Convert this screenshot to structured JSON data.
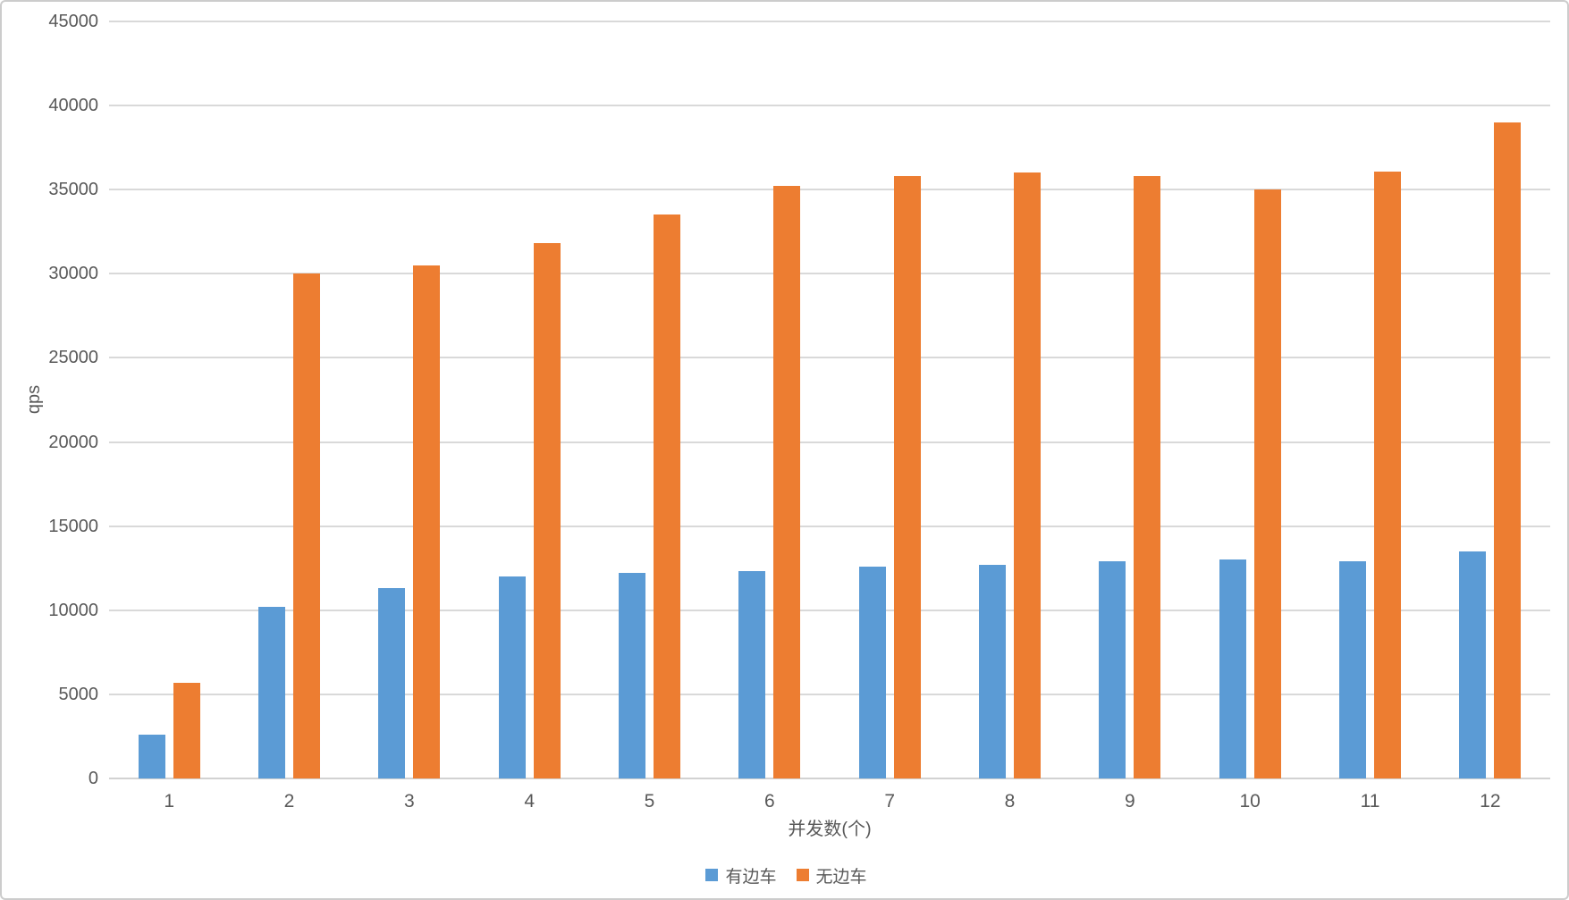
{
  "chart_data": {
    "type": "bar",
    "title": "",
    "xlabel": "并发数(个)",
    "ylabel": "qps",
    "categories": [
      "1",
      "2",
      "3",
      "4",
      "5",
      "6",
      "7",
      "8",
      "9",
      "10",
      "11",
      "12"
    ],
    "series": [
      {
        "name": "有边车",
        "color": "#5b9bd5",
        "values": [
          2600,
          10200,
          11300,
          12000,
          12200,
          12300,
          12600,
          12700,
          12900,
          13000,
          12900,
          13500
        ]
      },
      {
        "name": "无边车",
        "color": "#ed7d31",
        "values": [
          5700,
          30000,
          30500,
          31800,
          33500,
          35200,
          35800,
          36000,
          35800,
          35000,
          36100,
          39000
        ]
      }
    ],
    "ylim": [
      0,
      45000
    ],
    "y_ticks": [
      0,
      5000,
      10000,
      15000,
      20000,
      25000,
      30000,
      35000,
      40000,
      45000
    ],
    "grid": true,
    "legend_position": "bottom",
    "axis_text_color": "#595959",
    "gridline_color": "#d9d9d9"
  }
}
